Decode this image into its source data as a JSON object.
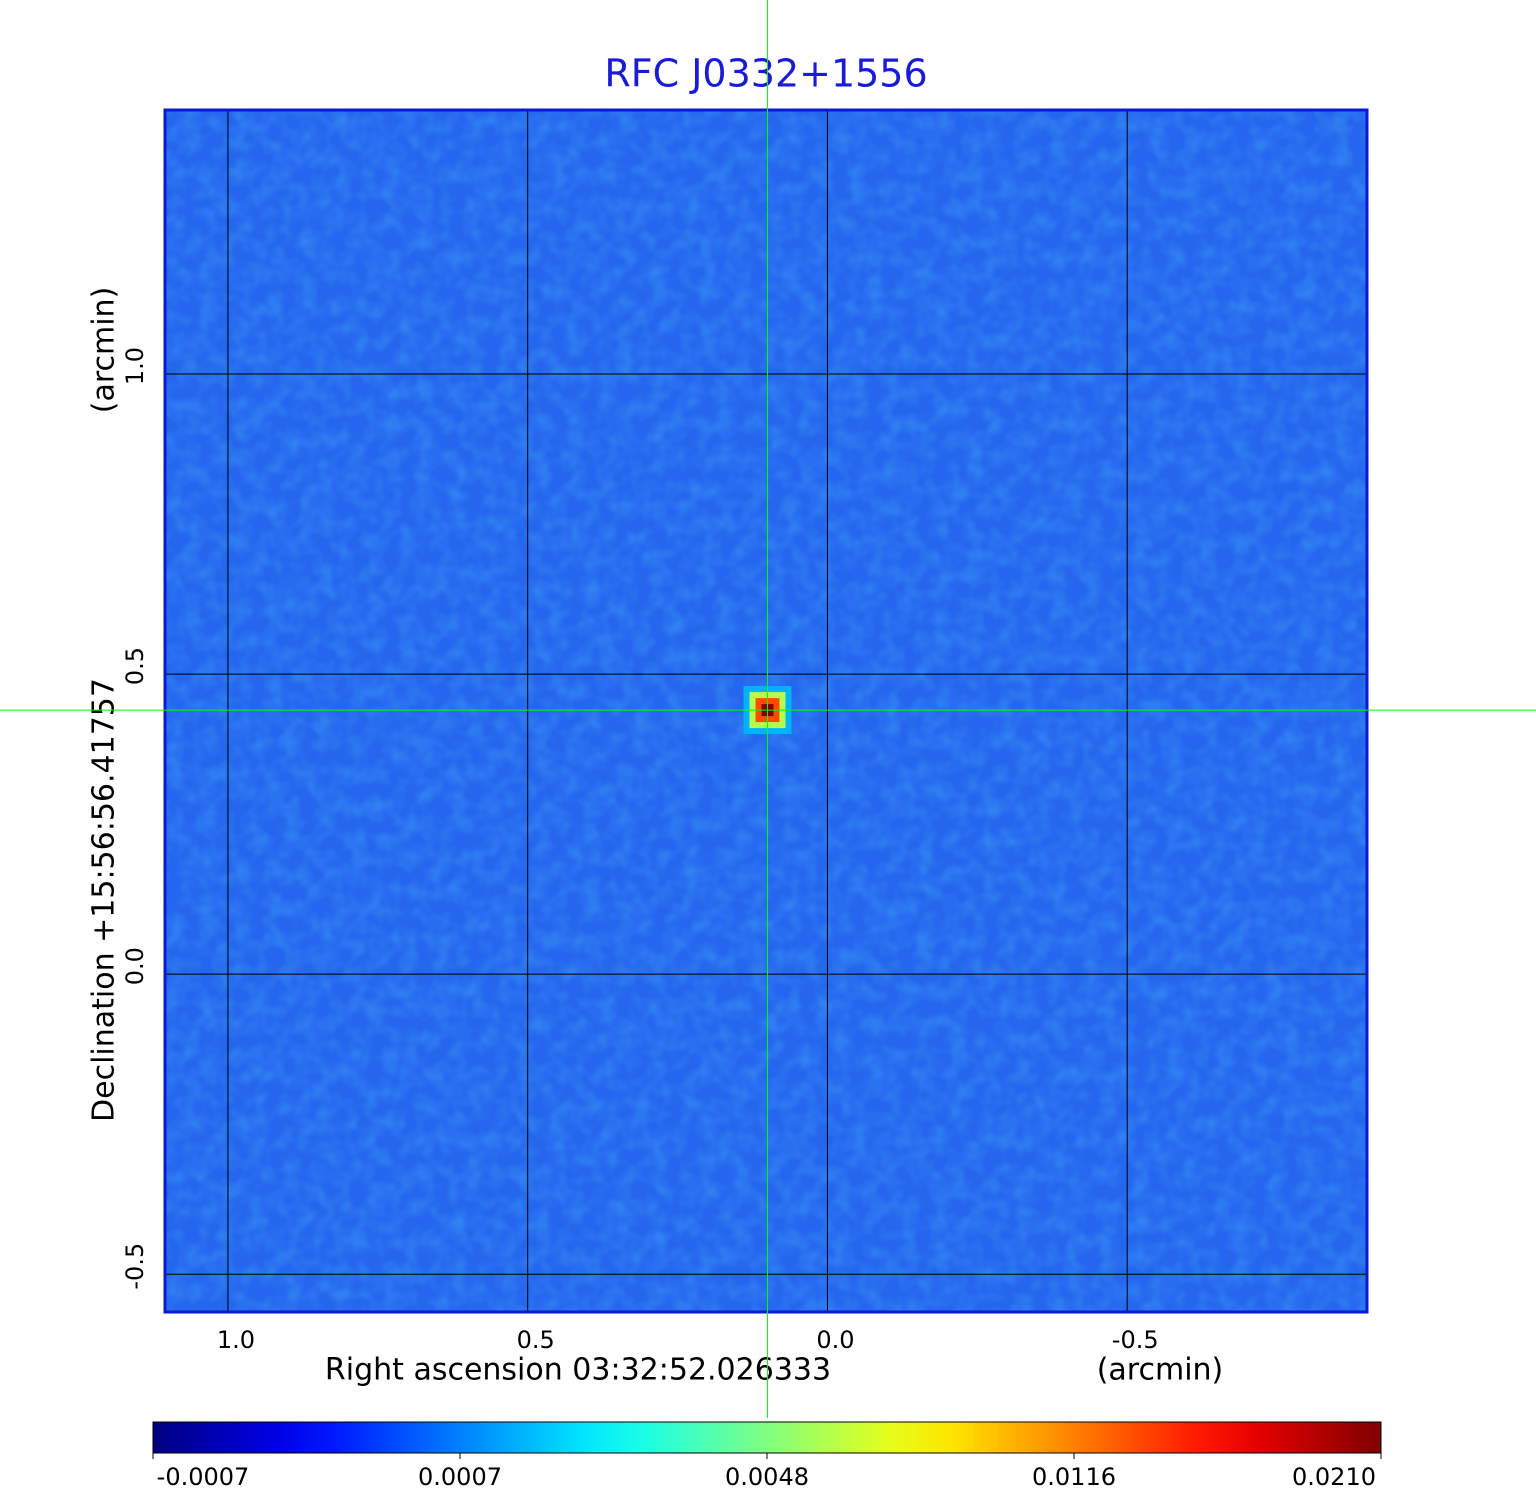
{
  "chart_data": {
    "type": "image",
    "title": "RFC J0332+1556",
    "x_label": "Right ascension  03:32:52.026333",
    "x_unit": "(arcmin)",
    "y_label": "Declination  +15:56:56.41757",
    "y_unit": "(arcmin)",
    "xlim": [
      1.105,
      -0.9
    ],
    "ylim": [
      -0.563,
      1.44
    ],
    "xticks": [
      {
        "value": 1,
        "label": "1.0"
      },
      0.5,
      {
        "value": 0,
        "label": "0.0"
      },
      -0.5
    ],
    "yticks": [
      -0.5,
      {
        "value": 0,
        "label": "0.0"
      },
      0.5,
      {
        "value": 1,
        "label": "1.0"
      }
    ],
    "grid": true,
    "colormap": "jet",
    "source": {
      "x": 0.1,
      "y": 0.44,
      "peak": 0.021
    },
    "crosshair": {
      "x": 0.1,
      "y": 0.44,
      "color": "#00ff00"
    },
    "colorbar_ticks": [
      -0.0007,
      0.0007,
      0.0048,
      0.0116,
      {
        "value": 0.021,
        "label": "0.0210"
      }
    ]
  }
}
